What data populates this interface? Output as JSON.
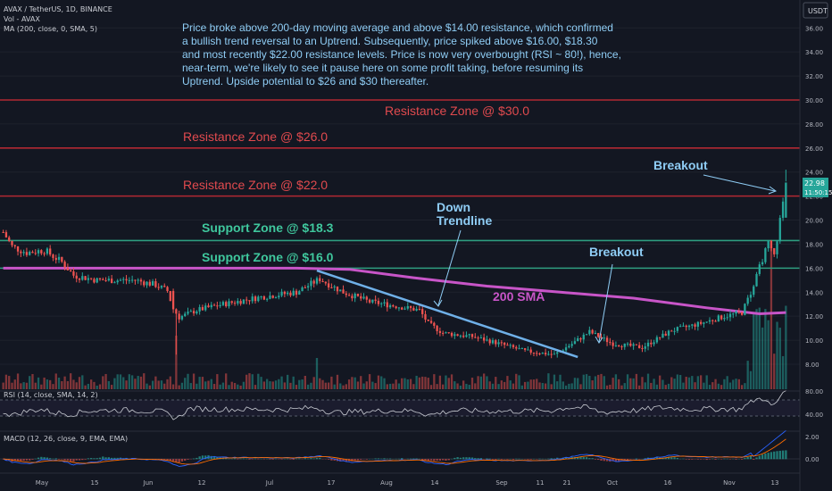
{
  "header": {
    "symbol_line": "AVAX / TetherUS, 1D, BINANCE",
    "volume_line": "Vol - AVAX",
    "ma_line": "MA (200, close, 0, SMA, 5)",
    "currency_badge": "USDT"
  },
  "price_badge": {
    "price": "22.98",
    "countdown": "11:50:15"
  },
  "annotation_text": [
    "Price broke above 200-day moving average and above $14.00 resistance, which confirmed",
    "a bullish trend reversal to an Uptrend. Subsequently, price spiked above $16.00, $18.30",
    "and most recently $22.00 resistance levels. Price is now very overbought (RSI ~ 80!), hence,",
    "near-term, we're likely to see it pause here on some profit taking, before resuming its",
    "Uptrend. Upside potential to $26 and $30 thereafter."
  ],
  "labels": {
    "resistance_30": "Resistance Zone @ $30.0",
    "resistance_26": "Resistance Zone @ $26.0",
    "resistance_22": "Resistance Zone @ $22.0",
    "support_18": "Support Zone @ $18.3",
    "support_16": "Support Zone @ $16.0",
    "down_trendline": [
      "Down",
      "Trendline"
    ],
    "breakout_1": "Breakout",
    "breakout_2": "Breakout",
    "sma_label": "200 SMA"
  },
  "rsi_header": "RSI (14, close, SMA, 14, 2)",
  "macd_header": "MACD (12, 26, close, 9, EMA, EMA)",
  "colors": {
    "background": "#131722",
    "up": "#26a69a",
    "down": "#ef5350",
    "resistance_line": "#b22833",
    "resistance_text": "#e04a4e",
    "support_line": "#2e9e80",
    "support_text": "#3fc79d",
    "sma": "#c855c8",
    "trendline": "#6fb0e8",
    "annotation_text": "#8fcdf5",
    "badge": "#26a69a"
  },
  "chart_data": {
    "type": "candlestick",
    "price_axis_ticks": [
      "36.00",
      "34.00",
      "32.00",
      "30.00",
      "28.00",
      "26.00",
      "24.00",
      "22.00",
      "20.00",
      "18.00",
      "16.00",
      "14.00",
      "12.00",
      "10.00",
      "8.00"
    ],
    "rsi_axis_ticks": [
      "80.00",
      "40.00"
    ],
    "macd_axis_ticks": [
      "2.00",
      "0.00"
    ],
    "x_tick_labels": [
      "May",
      "15",
      "Jun",
      "12",
      "Jul",
      "17",
      "Aug",
      "14",
      "Sep",
      "11",
      "21",
      "Oct",
      "16",
      "Nov",
      "13"
    ],
    "ylim": [
      6.5,
      37.0
    ],
    "levels": {
      "resistance": [
        30.0,
        26.0,
        22.0
      ],
      "support": [
        18.3,
        16.0
      ]
    },
    "trendline": {
      "from": {
        "date": "Jul 13",
        "price": 15.8
      },
      "to": {
        "date": "Sep 28",
        "price": 8.7
      }
    },
    "key_prices": {
      "start_late_april": 19.0,
      "early_may": 17.5,
      "mid_june_low": 8.8,
      "late_june": 12.5,
      "mid_july_spike": 15.8,
      "mid_august": 10.5,
      "late_september_low": 8.7,
      "early_october_breakout": 9.5,
      "late_october": 11.0,
      "early_november": 12.0,
      "mid_november": 22.98
    },
    "sma200_points": [
      {
        "date": "Apr 24",
        "price": 16.0
      },
      {
        "date": "Jul 13",
        "price": 16.0
      },
      {
        "date": "Aug 05",
        "price": 15.7
      },
      {
        "date": "Sep 05",
        "price": 14.4
      },
      {
        "date": "Oct 05",
        "price": 13.4
      },
      {
        "date": "Nov 15",
        "price": 12.3
      }
    ],
    "rsi_last": 80
  }
}
